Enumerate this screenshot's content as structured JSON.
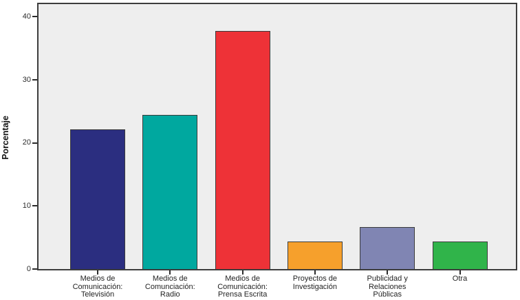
{
  "chart_data": {
    "type": "bar",
    "title": "",
    "xlabel": "",
    "ylabel": "Porcentaje",
    "ylim": [
      0,
      42
    ],
    "yticks": [
      0,
      10,
      20,
      30,
      40
    ],
    "grid": false,
    "legend": "none",
    "plot_background": "#eeeeee",
    "frame_color": "#3c3c3c",
    "bar_outline_color": "#3a3a3a",
    "categories": [
      "Medios de\nComunicación:\nTelevisión",
      "Medios de\nComunciación:\nRadio",
      "Medios de\nComunicación:\nPrensa Escrita",
      "Proyectos de\nInvestigación",
      "Publicidad y\nRelaciones\nPúblicas",
      "Otra"
    ],
    "values": [
      22.2,
      24.4,
      37.8,
      4.4,
      6.7,
      4.4
    ],
    "bar_colors": [
      "#2b2e80",
      "#00a89f",
      "#ee3237",
      "#f6a02c",
      "#8085b3",
      "#30b44a"
    ]
  }
}
